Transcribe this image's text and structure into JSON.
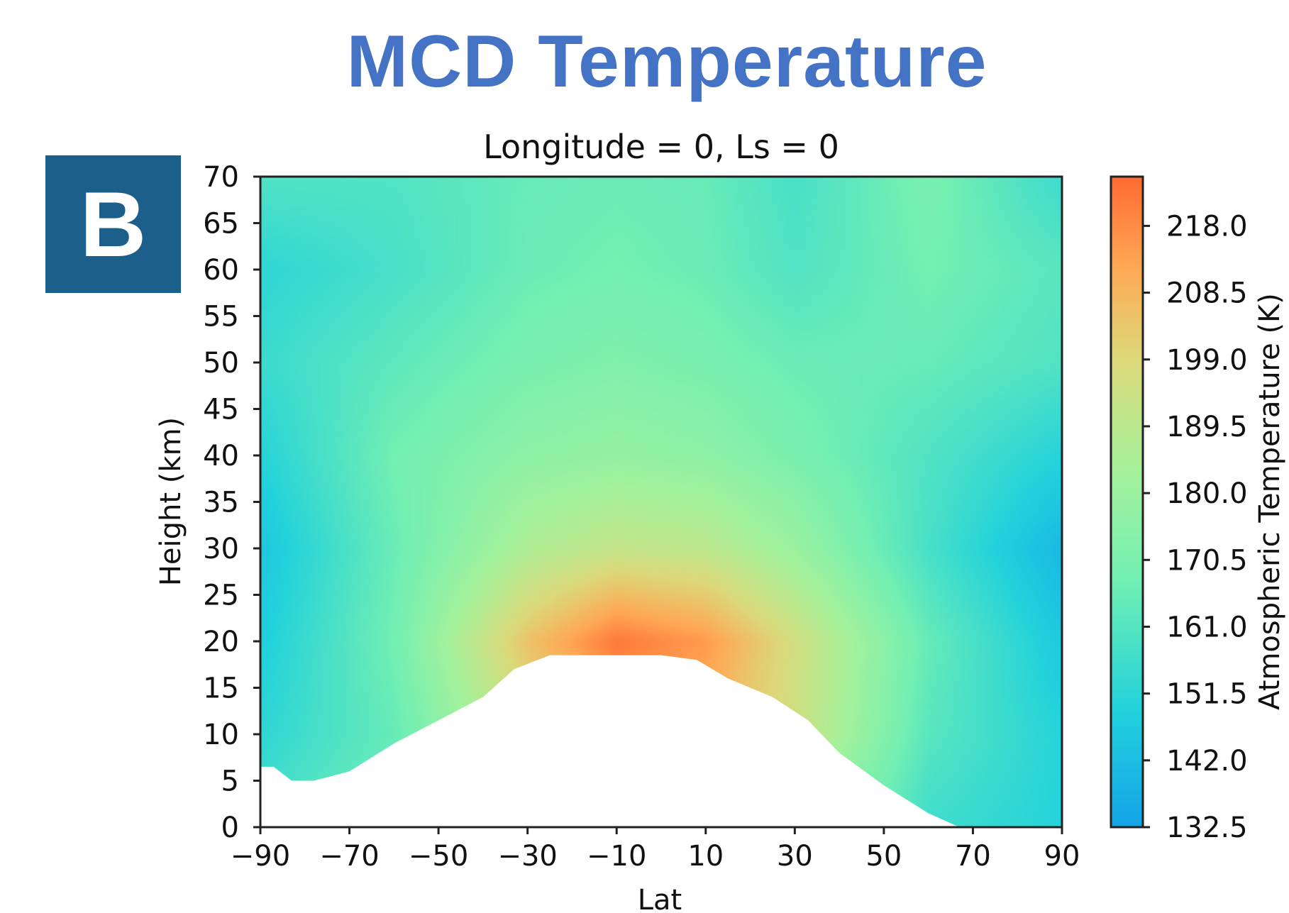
{
  "header": {
    "title": "MCD Temperature",
    "panel_label": "B"
  },
  "colors": {
    "title": "#4472c4",
    "badge": "#1b5f8a"
  },
  "chart_data": {
    "type": "heatmap",
    "title": "Longitude = 0, Ls = 0",
    "xlabel": "Lat",
    "ylabel": "Height (km)",
    "colorbar_label": "Atmospheric Temperature (K)",
    "colormap": "rainbow (blue-cyan-green-yellow-orange)",
    "xlim": [
      -90,
      90
    ],
    "ylim": [
      0,
      70
    ],
    "clim": [
      132.5,
      225
    ],
    "x_ticks": [
      "−90",
      "−70",
      "−50",
      "−30",
      "−10",
      "10",
      "30",
      "50",
      "70",
      "90"
    ],
    "x_tick_values": [
      -90,
      -70,
      -50,
      -30,
      -10,
      10,
      30,
      50,
      70,
      90
    ],
    "y_ticks": [
      "0",
      "5",
      "10",
      "15",
      "20",
      "25",
      "30",
      "35",
      "40",
      "45",
      "50",
      "55",
      "60",
      "65",
      "70"
    ],
    "y_tick_values": [
      0,
      5,
      10,
      15,
      20,
      25,
      30,
      35,
      40,
      45,
      50,
      55,
      60,
      65,
      70
    ],
    "colorbar_ticks": [
      "132.5",
      "142.0",
      "151.5",
      "161.0",
      "170.5",
      "180.0",
      "189.5",
      "199.0",
      "208.5",
      "218.0"
    ],
    "colorbar_tick_values": [
      132.5,
      142.0,
      151.5,
      161.0,
      170.5,
      180.0,
      189.5,
      199.0,
      208.5,
      218.0
    ],
    "surface_height_km": {
      "lat": [
        -90,
        -87,
        -83,
        -78,
        -74,
        -70,
        -60,
        -50,
        -40,
        -33,
        -25,
        -20,
        0,
        8,
        15,
        25,
        33,
        40,
        50,
        60,
        67,
        72,
        90
      ],
      "height": [
        6.5,
        6.5,
        5.0,
        5.0,
        5.5,
        6.0,
        9.0,
        11.5,
        14.0,
        17.0,
        18.5,
        18.5,
        18.5,
        18.0,
        16.0,
        14.0,
        11.5,
        8.0,
        4.5,
        1.5,
        0,
        0,
        0
      ]
    },
    "temperature_profile_K": {
      "lat": [
        -90,
        -60,
        -30,
        -10,
        10,
        30,
        60,
        90
      ],
      "height_km": [
        0,
        10,
        20,
        30,
        40,
        50,
        60,
        70
      ],
      "values": [
        [
          158,
          170,
          185,
          215,
          210,
          180,
          156,
          150
        ],
        [
          152,
          165,
          195,
          210,
          208,
          195,
          162,
          150
        ],
        [
          148,
          168,
          205,
          222,
          215,
          196,
          165,
          146
        ],
        [
          145,
          166,
          186,
          192,
          190,
          180,
          158,
          140
        ],
        [
          150,
          168,
          176,
          178,
          176,
          170,
          160,
          150
        ],
        [
          155,
          163,
          170,
          172,
          170,
          166,
          165,
          160
        ],
        [
          152,
          158,
          166,
          168,
          166,
          160,
          168,
          162
        ],
        [
          160,
          160,
          165,
          166,
          165,
          158,
          170,
          155
        ]
      ]
    }
  }
}
